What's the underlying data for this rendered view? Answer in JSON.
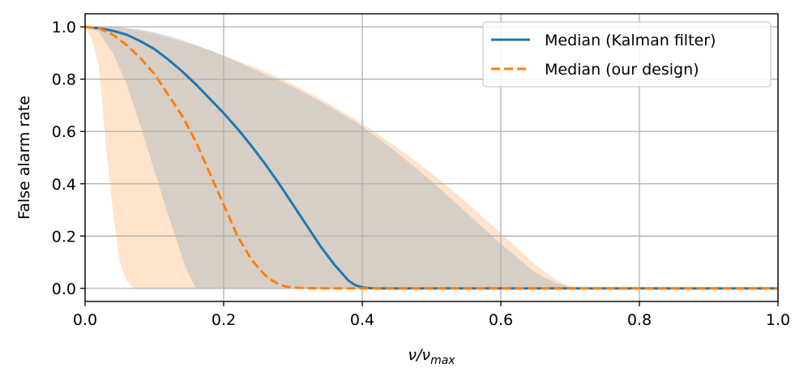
{
  "chart_data": {
    "type": "line",
    "title": "",
    "xlabel": {
      "base": "ν/ν",
      "sub": "max"
    },
    "ylabel": "False alarm rate",
    "xlim": [
      0.0,
      1.0
    ],
    "ylim": [
      -0.05,
      1.05
    ],
    "grid": true,
    "legend_position": "top-right",
    "x_ticks": [
      "0.0",
      "0.2",
      "0.4",
      "0.6",
      "0.8",
      "1.0"
    ],
    "y_ticks": [
      "0.0",
      "0.2",
      "0.4",
      "0.6",
      "0.8",
      "1.0"
    ],
    "series": [
      {
        "name": "Median (Kalman filter)",
        "color": "#1f77b4",
        "line_style": "solid",
        "x": [
          0.0,
          0.02,
          0.04,
          0.06,
          0.08,
          0.1,
          0.12,
          0.14,
          0.16,
          0.18,
          0.2,
          0.22,
          0.24,
          0.26,
          0.28,
          0.3,
          0.32,
          0.34,
          0.36,
          0.38,
          0.39,
          0.4,
          0.41,
          0.42,
          0.44,
          0.5,
          0.6,
          0.7,
          0.8,
          0.9,
          1.0
        ],
        "y": [
          1.0,
          0.995,
          0.985,
          0.97,
          0.945,
          0.915,
          0.875,
          0.83,
          0.78,
          0.725,
          0.67,
          0.61,
          0.545,
          0.475,
          0.4,
          0.32,
          0.24,
          0.16,
          0.09,
          0.03,
          0.012,
          0.004,
          0.001,
          0.0,
          0.0,
          0.0,
          0.0,
          0.0,
          0.0,
          0.0,
          0.0
        ]
      },
      {
        "name": "Median (our design)",
        "color": "#ff7f0e",
        "line_style": "dashed",
        "x": [
          0.0,
          0.02,
          0.04,
          0.06,
          0.08,
          0.1,
          0.12,
          0.14,
          0.16,
          0.18,
          0.2,
          0.22,
          0.24,
          0.26,
          0.27,
          0.28,
          0.29,
          0.3,
          0.32,
          0.35,
          0.4,
          0.5,
          0.6,
          0.7,
          0.8,
          0.9,
          1.0
        ],
        "y": [
          1.0,
          0.995,
          0.97,
          0.93,
          0.88,
          0.82,
          0.74,
          0.66,
          0.56,
          0.44,
          0.32,
          0.2,
          0.11,
          0.05,
          0.03,
          0.015,
          0.007,
          0.003,
          0.001,
          0.0,
          0.0,
          0.0,
          0.0,
          0.0,
          0.0,
          0.0,
          0.0
        ]
      }
    ],
    "bands": [
      {
        "color": "#ff7f0e",
        "opacity": 0.22,
        "x": [
          0.0,
          0.01,
          0.02,
          0.03,
          0.04,
          0.05,
          0.06,
          0.07,
          0.08,
          0.1,
          0.12,
          0.14,
          0.16,
          0.18,
          0.2,
          0.25,
          0.3,
          0.35,
          0.4,
          0.45,
          0.5,
          0.55,
          0.6,
          0.65,
          0.68,
          0.7,
          0.72,
          0.75,
          1.0
        ],
        "lower": [
          1.0,
          0.95,
          0.85,
          0.55,
          0.3,
          0.1,
          0.03,
          0.0,
          0.0,
          0.0,
          0.0,
          0.0,
          0.0,
          0.0,
          0.0,
          0.0,
          0.0,
          0.0,
          0.0,
          0.0,
          0.0,
          0.0,
          0.0,
          0.0,
          0.0,
          0.0,
          0.0,
          0.0,
          0.0
        ],
        "upper": [
          1.0,
          1.0,
          1.0,
          1.0,
          1.0,
          1.0,
          0.995,
          0.99,
          0.985,
          0.975,
          0.96,
          0.945,
          0.93,
          0.91,
          0.89,
          0.84,
          0.78,
          0.71,
          0.63,
          0.54,
          0.44,
          0.33,
          0.21,
          0.09,
          0.03,
          0.008,
          0.002,
          0.0,
          0.0
        ]
      },
      {
        "color": "#1f77b4",
        "opacity": 0.18,
        "x": [
          0.0,
          0.02,
          0.04,
          0.06,
          0.08,
          0.1,
          0.12,
          0.14,
          0.15,
          0.16,
          0.18,
          0.2,
          0.25,
          0.3,
          0.35,
          0.4,
          0.45,
          0.5,
          0.55,
          0.6,
          0.65,
          0.68,
          0.7,
          0.72,
          1.0
        ],
        "lower": [
          1.0,
          0.98,
          0.9,
          0.78,
          0.62,
          0.45,
          0.28,
          0.12,
          0.05,
          0.0,
          0.0,
          0.0,
          0.0,
          0.0,
          0.0,
          0.0,
          0.0,
          0.0,
          0.0,
          0.0,
          0.0,
          0.0,
          0.0,
          0.0,
          0.0
        ],
        "upper": [
          1.0,
          1.0,
          1.0,
          0.995,
          0.99,
          0.98,
          0.965,
          0.95,
          0.94,
          0.93,
          0.91,
          0.89,
          0.83,
          0.77,
          0.7,
          0.62,
          0.52,
          0.41,
          0.29,
          0.17,
          0.06,
          0.02,
          0.005,
          0.0,
          0.0
        ]
      }
    ]
  }
}
